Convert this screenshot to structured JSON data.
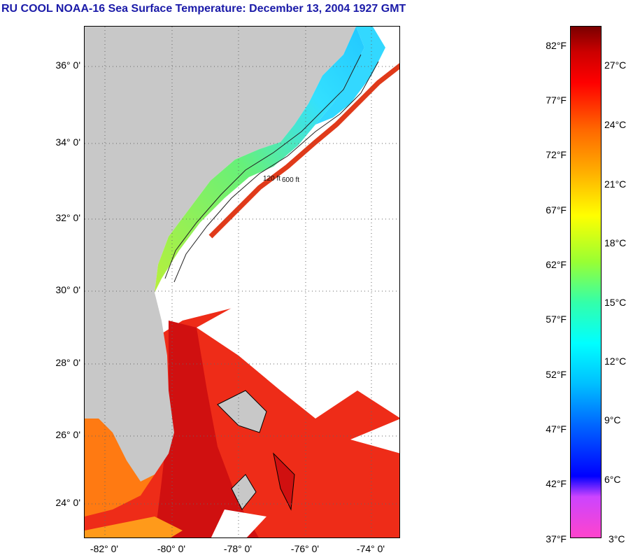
{
  "title": "RU COOL  NOAA-16  Sea Surface Temperature:  December 13, 2004 1927 GMT",
  "map": {
    "lat_labels": [
      "36° 0'",
      "34° 0'",
      "32° 0'",
      "30° 0'",
      "28° 0'",
      "26° 0'",
      "24° 0'"
    ],
    "lon_labels": [
      "-82° 0'",
      "-80° 0'",
      "-78° 0'",
      "-76° 0'",
      "-74° 0'"
    ],
    "contour_labels": [
      "120 ft",
      "600 ft"
    ],
    "colors": {
      "land": "#c8c8c8",
      "cloud": "#ffffff",
      "gulf_stream": "#e0201c",
      "shelf_cold": "#33d6ff",
      "shelf_mid": "#aaf03c"
    }
  },
  "colorbar": {
    "fahrenheit": [
      "82°F",
      "77°F",
      "72°F",
      "67°F",
      "62°F",
      "57°F",
      "52°F",
      "47°F",
      "42°F",
      "37°F"
    ],
    "celsius": [
      "27°C",
      "24°C",
      "21°C",
      "18°C",
      "15°C",
      "12°C",
      "9°C",
      "6°C",
      "3°C"
    ]
  }
}
